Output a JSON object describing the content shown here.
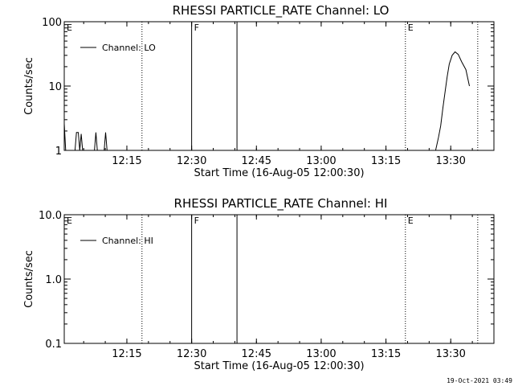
{
  "colors": {
    "background": "#ffffff",
    "ink": "#000000"
  },
  "timestamp": "19-Oct-2021 03:49",
  "chart_data": [
    {
      "type": "line",
      "title": "RHESSI PARTICLE_RATE Channel: LO",
      "xlabel": "Start Time (16-Aug-05 12:00:30)",
      "ylabel": "Counts/sec",
      "y_scale": "log",
      "ylim": [
        1,
        100
      ],
      "yticks": [
        "1",
        "10",
        "100"
      ],
      "xlim": [
        "12:00:30",
        "13:40:00"
      ],
      "xticks": [
        "12:15",
        "12:30",
        "12:45",
        "13:00",
        "13:15",
        "13:30"
      ],
      "legend": {
        "position": "top-left",
        "entries": [
          "Channel: LO"
        ]
      },
      "grid": false,
      "vertical_markers": [
        {
          "time": "12:00:30",
          "style": "dotted",
          "label": "E"
        },
        {
          "time": "12:18:30",
          "style": "dotted",
          "label": ""
        },
        {
          "time": "12:30:00",
          "style": "solid",
          "label": "F"
        },
        {
          "time": "12:40:30",
          "style": "solid",
          "label": ""
        },
        {
          "time": "13:19:30",
          "style": "dotted",
          "label": "E"
        },
        {
          "time": "13:36:15",
          "style": "dotted",
          "label": ""
        }
      ],
      "series": [
        {
          "name": "Channel: LO",
          "points": [
            [
              "12:00:30",
              2.6
            ],
            [
              "12:00:50",
              1.0
            ],
            [
              "12:03:00",
              1.0
            ],
            [
              "12:03:20",
              1.9
            ],
            [
              "12:03:45",
              1.9
            ],
            [
              "12:04:05",
              1.0
            ],
            [
              "12:04:25",
              1.8
            ],
            [
              "12:04:45",
              1.0
            ],
            [
              "12:07:30",
              1.0
            ],
            [
              "12:07:50",
              1.9
            ],
            [
              "12:08:10",
              1.0
            ],
            [
              "12:09:45",
              1.0
            ],
            [
              "12:10:05",
              1.9
            ],
            [
              "12:10:25",
              1.0
            ],
            [
              "13:26:30",
              1.0
            ],
            [
              "13:27:10",
              1.6
            ],
            [
              "13:27:40",
              2.4
            ],
            [
              "13:28:10",
              4.5
            ],
            [
              "13:28:40",
              8.0
            ],
            [
              "13:29:10",
              14.0
            ],
            [
              "13:29:40",
              22.0
            ],
            [
              "13:30:20",
              30.0
            ],
            [
              "13:31:00",
              34.0
            ],
            [
              "13:31:45",
              31.0
            ],
            [
              "13:32:30",
              24.0
            ],
            [
              "13:33:30",
              18.0
            ],
            [
              "13:34:20",
              10.0
            ]
          ]
        }
      ]
    },
    {
      "type": "line",
      "title": "RHESSI PARTICLE_RATE Channel: HI",
      "xlabel": "Start Time (16-Aug-05 12:00:30)",
      "ylabel": "Counts/sec",
      "y_scale": "log",
      "ylim": [
        0.1,
        10
      ],
      "yticks": [
        "0.1",
        "1.0",
        "10.0"
      ],
      "xlim": [
        "12:00:30",
        "13:40:00"
      ],
      "xticks": [
        "12:15",
        "12:30",
        "12:45",
        "13:00",
        "13:15",
        "13:30"
      ],
      "legend": {
        "position": "top-left",
        "entries": [
          "Channel: HI"
        ]
      },
      "grid": false,
      "vertical_markers": [
        {
          "time": "12:00:30",
          "style": "dotted",
          "label": "E"
        },
        {
          "time": "12:18:30",
          "style": "dotted",
          "label": ""
        },
        {
          "time": "12:30:00",
          "style": "solid",
          "label": "F"
        },
        {
          "time": "12:40:30",
          "style": "solid",
          "label": ""
        },
        {
          "time": "13:19:30",
          "style": "dotted",
          "label": "E"
        },
        {
          "time": "13:36:15",
          "style": "dotted",
          "label": ""
        }
      ],
      "series": [
        {
          "name": "Channel: HI",
          "points": []
        }
      ]
    }
  ]
}
